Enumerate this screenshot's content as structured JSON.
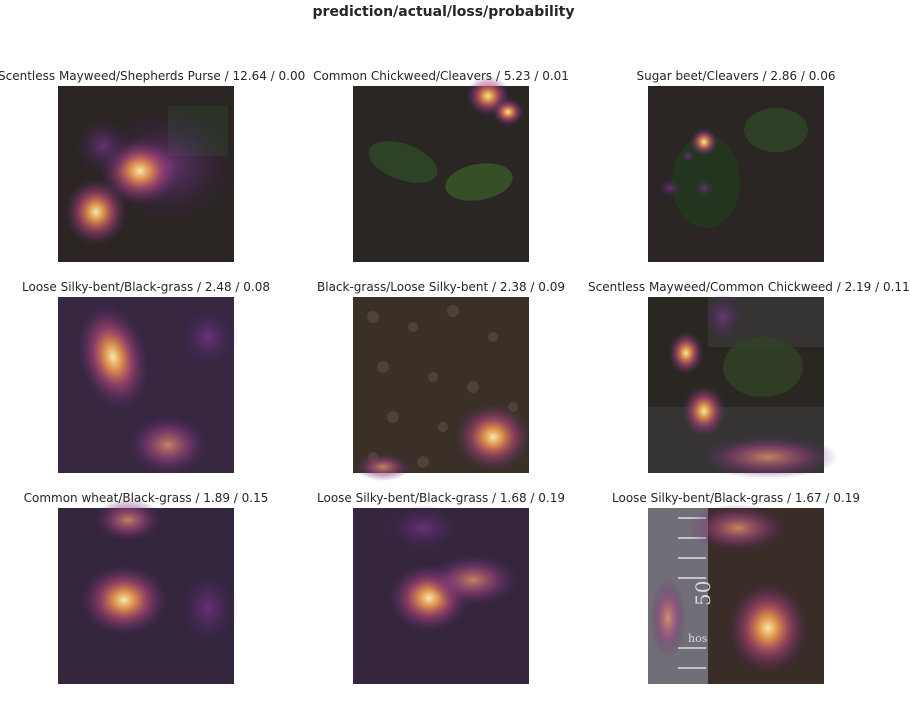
{
  "title": "prediction/actual/loss/probability",
  "panels": [
    {
      "title": "Scentless Mayweed/Shepherds Purse / 12.64 / 0.00"
    },
    {
      "title": "Common Chickweed/Cleavers / 5.23 / 0.01"
    },
    {
      "title": "Sugar beet/Cleavers / 2.86 / 0.06"
    },
    {
      "title": "Loose Silky-bent/Black-grass / 2.48 / 0.08"
    },
    {
      "title": "Black-grass/Loose Silky-bent / 2.38 / 0.09"
    },
    {
      "title": "Scentless Mayweed/Common Chickweed / 2.19 / 0.11"
    },
    {
      "title": "Common wheat/Black-grass / 1.89 / 0.15"
    },
    {
      "title": "Loose Silky-bent/Black-grass / 1.68 / 0.19"
    },
    {
      "title": "Loose Silky-bent/Black-grass / 1.67 / 0.19"
    }
  ],
  "image_text": {
    "ruler_number": "50",
    "ruler_text": "hos"
  }
}
